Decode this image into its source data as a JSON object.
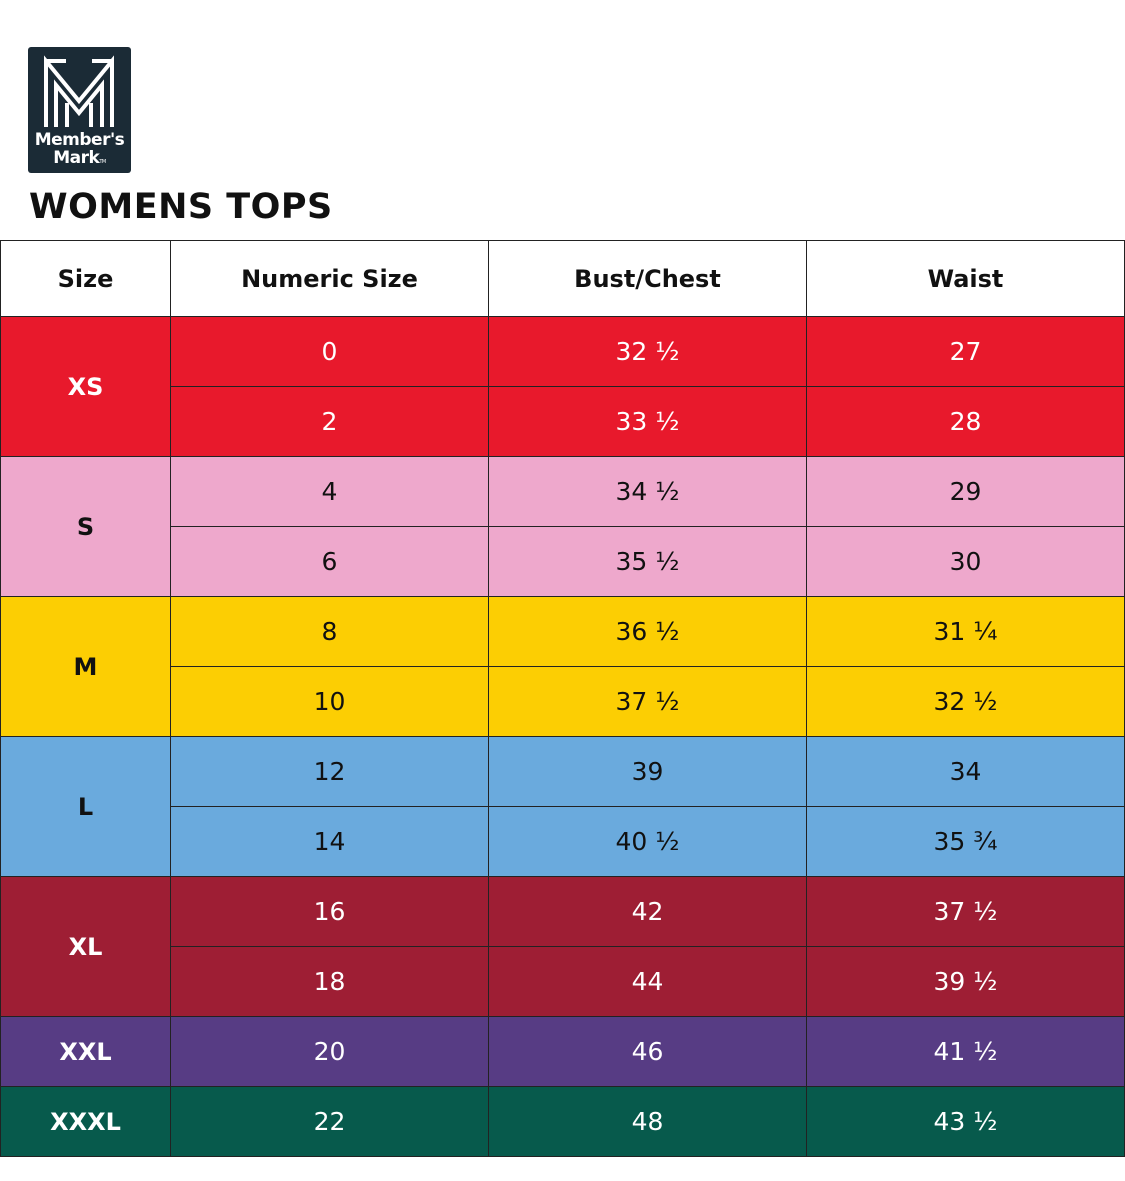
{
  "brand": {
    "name_line1": "Member's",
    "name_line2": "Mark",
    "tm": "TM"
  },
  "title": "WOMENS TOPS",
  "table": {
    "headers": [
      "Size",
      "Numeric Size",
      "Bust/Chest",
      "Waist"
    ],
    "groups": [
      {
        "size": "XS",
        "bg": "#e8192c",
        "fg": "#ffffff",
        "rows": [
          {
            "numeric": "0",
            "bust": "32 ½",
            "waist": "27"
          },
          {
            "numeric": "2",
            "bust": "33 ½",
            "waist": "28"
          }
        ]
      },
      {
        "size": "S",
        "bg": "#eea8cc",
        "fg": "#111111",
        "rows": [
          {
            "numeric": "4",
            "bust": "34 ½",
            "waist": "29"
          },
          {
            "numeric": "6",
            "bust": "35 ½",
            "waist": "30"
          }
        ]
      },
      {
        "size": "M",
        "bg": "#fcce03",
        "fg": "#111111",
        "rows": [
          {
            "numeric": "8",
            "bust": "36 ½",
            "waist": "31 ¼"
          },
          {
            "numeric": "10",
            "bust": "37 ½",
            "waist": "32 ½"
          }
        ]
      },
      {
        "size": "L",
        "bg": "#6aaadd",
        "fg": "#111111",
        "rows": [
          {
            "numeric": "12",
            "bust": "39",
            "waist": "34"
          },
          {
            "numeric": "14",
            "bust": "40 ½",
            "waist": "35 ¾"
          }
        ]
      },
      {
        "size": "XL",
        "bg": "#9e1e34",
        "fg": "#ffffff",
        "rows": [
          {
            "numeric": "16",
            "bust": "42",
            "waist": "37 ½"
          },
          {
            "numeric": "18",
            "bust": "44",
            "waist": "39 ½"
          }
        ]
      },
      {
        "size": "XXL",
        "bg": "#573c84",
        "fg": "#ffffff",
        "rows": [
          {
            "numeric": "20",
            "bust": "46",
            "waist": "41 ½"
          }
        ]
      },
      {
        "size": "XXXL",
        "bg": "#075a4c",
        "fg": "#ffffff",
        "rows": [
          {
            "numeric": "22",
            "bust": "48",
            "waist": "43 ½"
          }
        ]
      }
    ]
  }
}
